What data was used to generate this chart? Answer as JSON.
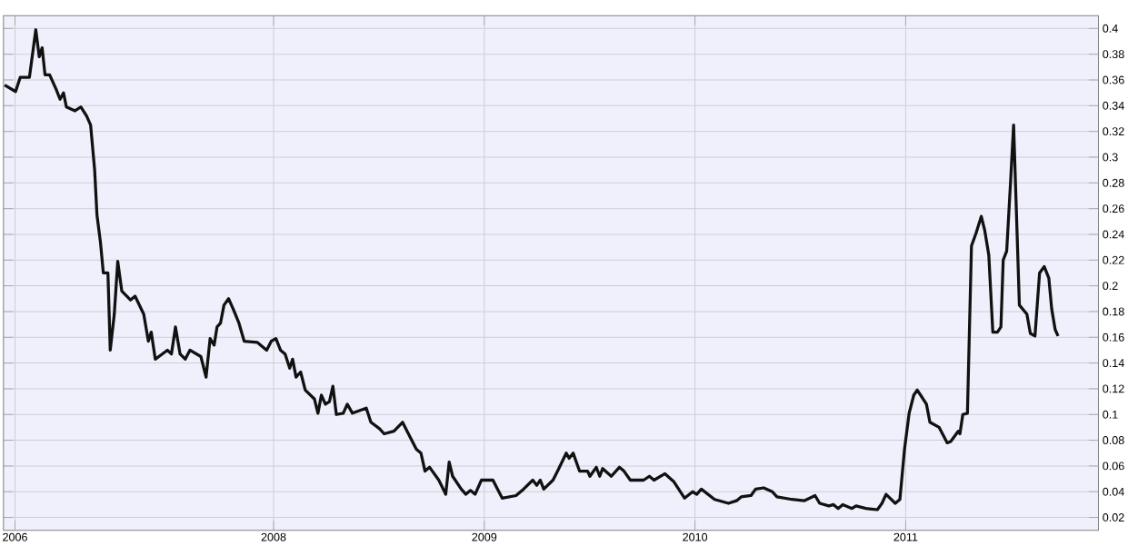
{
  "chart_data": {
    "type": "line",
    "x": [
      "2006-09-22",
      "2006-10-11",
      "2006-10-19",
      "2006-11-04",
      "2006-11-15",
      "2006-11-21",
      "2006-11-26",
      "2006-12-01",
      "2006-12-09",
      "2006-12-20",
      "2006-12-27",
      "2007-01-02",
      "2007-01-07",
      "2007-01-22",
      "2007-02-01",
      "2007-02-11",
      "2007-02-18",
      "2007-02-25",
      "2007-03-01",
      "2007-03-07",
      "2007-03-12",
      "2007-03-20",
      "2007-03-24",
      "2007-03-31",
      "2007-04-06",
      "2007-04-13",
      "2007-04-28",
      "2007-05-06",
      "2007-05-21",
      "2007-05-29",
      "2007-06-03",
      "2007-06-10",
      "2007-06-22",
      "2007-07-01",
      "2007-07-08",
      "2007-07-15",
      "2007-07-23",
      "2007-08-01",
      "2007-08-09",
      "2007-08-28",
      "2007-09-06",
      "2007-09-13",
      "2007-09-20",
      "2007-09-25",
      "2007-10-01",
      "2007-10-07",
      "2007-10-15",
      "2007-10-23",
      "2007-11-02",
      "2007-11-11",
      "2007-12-04",
      "2007-12-20",
      "2007-12-28",
      "2008-01-05",
      "2008-01-13",
      "2008-01-21",
      "2008-01-29",
      "2008-02-03",
      "2008-02-09",
      "2008-02-17",
      "2008-02-25",
      "2008-03-12",
      "2008-03-18",
      "2008-03-24",
      "2008-03-31",
      "2008-04-07",
      "2008-04-13",
      "2008-04-19",
      "2008-05-01",
      "2008-05-08",
      "2008-05-17",
      "2008-06-10",
      "2008-06-18",
      "2008-07-03",
      "2008-07-11",
      "2008-07-28",
      "2008-08-12",
      "2008-08-20",
      "2008-09-05",
      "2008-09-13",
      "2008-09-20",
      "2008-09-28",
      "2008-10-14",
      "2008-10-26",
      "2008-11-01",
      "2008-11-07",
      "2008-11-22",
      "2008-11-30",
      "2008-12-08",
      "2008-12-16",
      "2008-12-27",
      "2009-01-16",
      "2009-01-24",
      "2009-02-01",
      "2009-02-25",
      "2009-03-10",
      "2009-03-26",
      "2009-04-02",
      "2009-04-08",
      "2009-04-14",
      "2009-04-30",
      "2009-05-08",
      "2009-05-23",
      "2009-05-28",
      "2009-06-04",
      "2009-06-15",
      "2009-06-29",
      "2009-07-03",
      "2009-07-14",
      "2009-07-20",
      "2009-07-25",
      "2009-08-09",
      "2009-08-23",
      "2009-08-31",
      "2009-09-11",
      "2009-10-04",
      "2009-10-14",
      "2009-10-22",
      "2009-11-10",
      "2009-11-25",
      "2009-12-14",
      "2009-12-28",
      "2010-01-04",
      "2010-01-12",
      "2010-02-04",
      "2010-02-28",
      "2010-03-14",
      "2010-03-22",
      "2010-04-08",
      "2010-04-16",
      "2010-04-30",
      "2010-05-15",
      "2010-05-23",
      "2010-06-18",
      "2010-07-09",
      "2010-07-28",
      "2010-08-05",
      "2010-08-21",
      "2010-08-29",
      "2010-09-06",
      "2010-09-14",
      "2010-09-30",
      "2010-10-07",
      "2010-10-24",
      "2010-11-13",
      "2010-11-21",
      "2010-11-28",
      "2010-12-14",
      "2010-12-22",
      "2010-12-30",
      "2011-01-07",
      "2011-01-15",
      "2011-01-21",
      "2011-01-27",
      "2011-02-06",
      "2011-02-12",
      "2011-02-28",
      "2011-03-14",
      "2011-03-20",
      "2011-04-02",
      "2011-04-05",
      "2011-04-10",
      "2011-04-18",
      "2011-04-21",
      "2011-04-25",
      "2011-05-03",
      "2011-05-12",
      "2011-05-18",
      "2011-05-25",
      "2011-06-01",
      "2011-06-09",
      "2011-06-15",
      "2011-06-19",
      "2011-06-25",
      "2011-07-02",
      "2011-07-07",
      "2011-07-11",
      "2011-07-17",
      "2011-07-30",
      "2011-08-05",
      "2011-08-13",
      "2011-08-21",
      "2011-08-29",
      "2011-09-06",
      "2011-09-11",
      "2011-09-17",
      "2011-09-22"
    ],
    "series": [
      {
        "color": "#111111",
        "values": [
          0.356,
          0.351,
          0.362,
          0.362,
          0.399,
          0.378,
          0.385,
          0.364,
          0.364,
          0.353,
          0.345,
          0.35,
          0.339,
          0.336,
          0.339,
          0.332,
          0.325,
          0.29,
          0.255,
          0.234,
          0.21,
          0.21,
          0.15,
          0.178,
          0.219,
          0.196,
          0.189,
          0.192,
          0.178,
          0.157,
          0.164,
          0.143,
          0.147,
          0.15,
          0.147,
          0.168,
          0.147,
          0.143,
          0.15,
          0.145,
          0.129,
          0.159,
          0.154,
          0.168,
          0.171,
          0.185,
          0.19,
          0.182,
          0.171,
          0.157,
          0.156,
          0.15,
          0.157,
          0.159,
          0.15,
          0.147,
          0.136,
          0.143,
          0.129,
          0.133,
          0.119,
          0.112,
          0.101,
          0.115,
          0.108,
          0.11,
          0.122,
          0.1,
          0.101,
          0.108,
          0.101,
          0.105,
          0.094,
          0.089,
          0.085,
          0.087,
          0.094,
          0.087,
          0.073,
          0.07,
          0.056,
          0.059,
          0.049,
          0.038,
          0.063,
          0.052,
          0.042,
          0.038,
          0.041,
          0.038,
          0.049,
          0.049,
          0.042,
          0.035,
          0.037,
          0.042,
          0.049,
          0.045,
          0.049,
          0.042,
          0.049,
          0.056,
          0.07,
          0.066,
          0.07,
          0.056,
          0.056,
          0.052,
          0.059,
          0.052,
          0.058,
          0.052,
          0.059,
          0.056,
          0.049,
          0.049,
          0.052,
          0.049,
          0.054,
          0.048,
          0.035,
          0.04,
          0.038,
          0.042,
          0.034,
          0.031,
          0.033,
          0.036,
          0.037,
          0.042,
          0.043,
          0.04,
          0.036,
          0.034,
          0.033,
          0.037,
          0.031,
          0.029,
          0.03,
          0.027,
          0.03,
          0.027,
          0.029,
          0.027,
          0.026,
          0.031,
          0.038,
          0.031,
          0.034,
          0.073,
          0.101,
          0.115,
          0.119,
          0.115,
          0.108,
          0.094,
          0.09,
          0.078,
          0.079,
          0.087,
          0.085,
          0.1,
          0.101,
          0.157,
          0.231,
          0.241,
          0.254,
          0.243,
          0.224,
          0.164,
          0.164,
          0.168,
          0.22,
          0.227,
          0.283,
          0.325,
          0.269,
          0.185,
          0.178,
          0.163,
          0.161,
          0.21,
          0.215,
          0.206,
          0.182,
          0.166,
          0.161
        ]
      }
    ],
    "xlim": [
      "2006-09-20",
      "2011-12-01"
    ],
    "xticks": [
      {
        "value": "2006-10-10",
        "label": "2006"
      },
      {
        "value": "2008-01-01",
        "label": "2008"
      },
      {
        "value": "2009-01-01",
        "label": "2009"
      },
      {
        "value": "2010-01-01",
        "label": "2010"
      },
      {
        "value": "2011-01-01",
        "label": "2011"
      }
    ],
    "ylim": [
      0.01,
      0.41
    ],
    "yticks": [
      0.02,
      0.04,
      0.06,
      0.08,
      0.1,
      0.12,
      0.14,
      0.16,
      0.18,
      0.2,
      0.22,
      0.24,
      0.26,
      0.28,
      0.3,
      0.32,
      0.34,
      0.36,
      0.38,
      0.4
    ],
    "grid": true,
    "marker": "none",
    "line_style": "solid"
  }
}
